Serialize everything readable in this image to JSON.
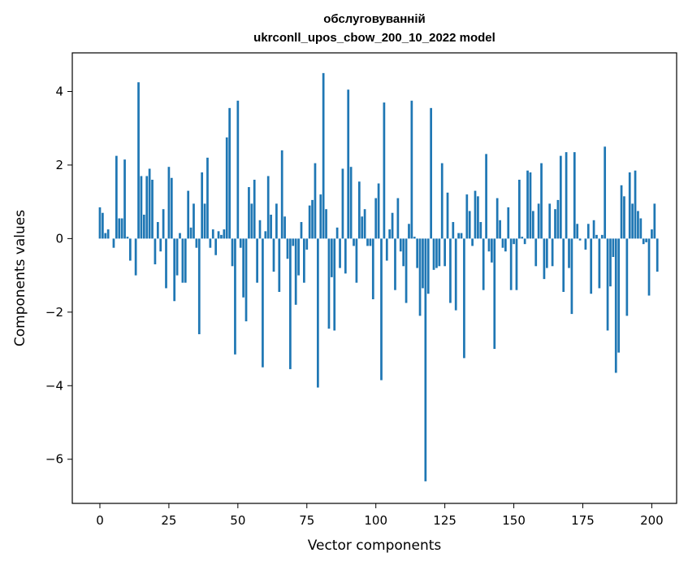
{
  "chart_data": {
    "type": "bar",
    "title_line1": "обслуговуванній",
    "title_line2": "ukrconll_upos_cbow_200_10_2022 model",
    "xlabel": "Vector components",
    "ylabel": "Components values",
    "xlim": [
      -10,
      209
    ],
    "ylim": [
      -7.2,
      5.05
    ],
    "xticks": [
      0,
      25,
      50,
      75,
      100,
      125,
      150,
      175,
      200
    ],
    "yticks": [
      -6,
      -4,
      -2,
      0,
      2,
      4
    ],
    "ytick_labels": [
      "−6",
      "−4",
      "−2",
      "0",
      "2",
      "4"
    ],
    "bar_color": "#1f77b4",
    "values": [
      0.85,
      0.7,
      0.15,
      0.25,
      0.0,
      -0.25,
      2.25,
      0.55,
      0.55,
      2.15,
      0.05,
      -0.6,
      0.0,
      -1.0,
      4.25,
      1.7,
      0.65,
      1.7,
      1.9,
      1.6,
      -0.7,
      0.45,
      -0.35,
      0.8,
      -1.35,
      1.95,
      1.65,
      -1.7,
      -1.0,
      0.15,
      -1.2,
      -1.2,
      1.3,
      0.3,
      0.95,
      -0.25,
      -2.6,
      1.8,
      0.95,
      2.2,
      -0.25,
      0.25,
      -0.45,
      0.2,
      0.1,
      0.25,
      2.75,
      3.55,
      -0.75,
      -3.15,
      3.75,
      -0.25,
      -1.6,
      -2.25,
      1.4,
      0.95,
      1.6,
      -1.2,
      0.5,
      -3.5,
      0.2,
      1.7,
      0.65,
      -0.9,
      0.95,
      -1.45,
      2.4,
      0.6,
      -0.55,
      -3.55,
      -0.2,
      -1.8,
      -1.0,
      0.45,
      -1.2,
      -0.3,
      0.9,
      1.05,
      2.05,
      -4.05,
      1.2,
      4.5,
      0.8,
      -2.45,
      -1.05,
      -2.5,
      0.3,
      -0.8,
      1.9,
      -0.95,
      4.05,
      1.95,
      -0.2,
      -1.2,
      1.55,
      0.6,
      0.8,
      -0.2,
      -0.2,
      -1.65,
      1.1,
      1.5,
      -3.85,
      3.7,
      -0.6,
      0.25,
      0.7,
      -1.4,
      1.1,
      -0.35,
      -0.75,
      -1.75,
      0.4,
      3.75,
      0.05,
      -0.8,
      -2.1,
      -1.35,
      -6.6,
      -1.5,
      3.55,
      -0.85,
      -0.8,
      -0.75,
      2.05,
      -0.75,
      1.25,
      -1.75,
      0.45,
      -1.95,
      0.15,
      0.15,
      -3.25,
      1.2,
      0.75,
      -0.2,
      1.3,
      1.15,
      0.45,
      -1.4,
      2.3,
      -0.35,
      -0.65,
      -3.0,
      1.1,
      0.5,
      -0.25,
      -0.35,
      0.85,
      -1.4,
      -0.15,
      -1.4,
      1.6,
      0.05,
      -0.15,
      1.85,
      1.8,
      0.75,
      -0.75,
      0.95,
      2.05,
      -1.1,
      -0.8,
      0.95,
      -0.75,
      0.8,
      1.05,
      2.25,
      -1.45,
      2.35,
      -0.8,
      -2.05,
      2.35,
      0.4,
      -0.05,
      0.0,
      -0.3,
      0.4,
      -1.5,
      0.5,
      0.1,
      -1.35,
      0.1,
      2.5,
      -2.5,
      -1.3,
      -0.5,
      -3.65,
      -3.1,
      1.45,
      1.15,
      -2.1,
      1.8,
      0.95,
      1.85,
      0.75,
      0.55,
      -0.15,
      -0.1,
      -1.55,
      0.25,
      0.95,
      -0.9
    ]
  }
}
